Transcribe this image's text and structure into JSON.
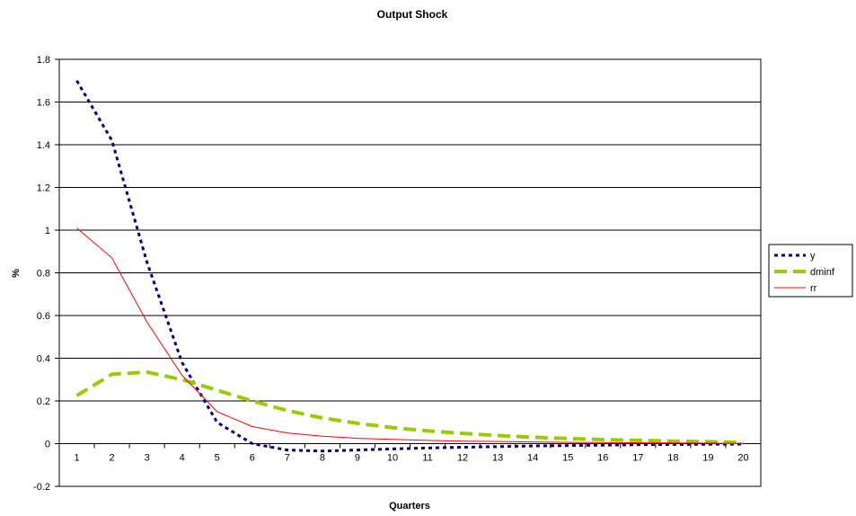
{
  "chart_data": {
    "type": "line",
    "title": "Output Shock",
    "xlabel": "Quarters",
    "ylabel": "%",
    "categories": [
      "1",
      "2",
      "3",
      "4",
      "5",
      "6",
      "7",
      "8",
      "9",
      "10",
      "11",
      "12",
      "13",
      "14",
      "15",
      "16",
      "17",
      "18",
      "19",
      "20"
    ],
    "yticks": [
      "-0.2",
      "0",
      "0.2",
      "0.4",
      "0.6",
      "0.8",
      "1",
      "1.2",
      "1.4",
      "1.6",
      "1.8"
    ],
    "ylim": [
      -0.2,
      1.8
    ],
    "grid": "horizontal",
    "legend_position": "right",
    "series": [
      {
        "name": "y",
        "color": "#000080",
        "style": "dotted",
        "values": [
          1.7,
          1.42,
          0.85,
          0.38,
          0.1,
          0.0,
          -0.03,
          -0.035,
          -0.03,
          -0.025,
          -0.02,
          -0.017,
          -0.014,
          -0.011,
          -0.009,
          -0.007,
          -0.005,
          -0.004,
          -0.003,
          -0.002
        ]
      },
      {
        "name": "dminf",
        "color": "#99CC00",
        "style": "dashed",
        "values": [
          0.225,
          0.325,
          0.335,
          0.3,
          0.25,
          0.2,
          0.155,
          0.12,
          0.095,
          0.075,
          0.06,
          0.048,
          0.038,
          0.03,
          0.024,
          0.019,
          0.015,
          0.012,
          0.009,
          0.005
        ]
      },
      {
        "name": "rr",
        "color": "#FF0000",
        "style": "solid",
        "values": [
          1.01,
          0.87,
          0.57,
          0.32,
          0.15,
          0.08,
          0.05,
          0.035,
          0.025,
          0.02,
          0.015,
          0.012,
          0.01,
          0.008,
          0.006,
          0.005,
          0.004,
          0.003,
          0.002,
          0.001
        ]
      }
    ]
  }
}
